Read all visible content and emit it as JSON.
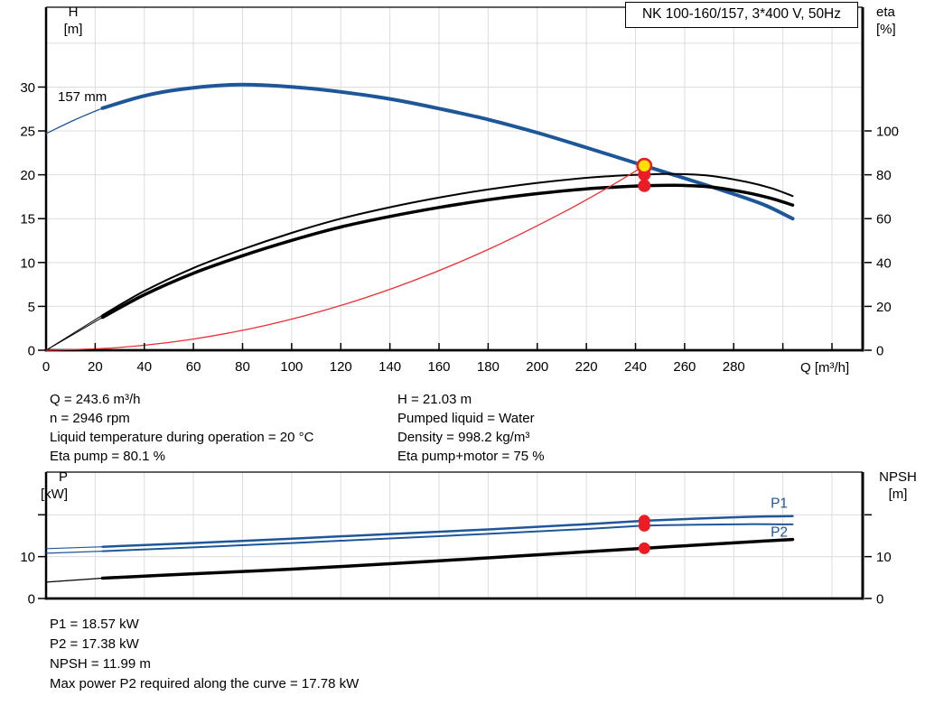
{
  "title_box": {
    "text": "NK 100-160/157, 3*400 V, 50Hz"
  },
  "colors": {
    "curve_blue": "#1e5799",
    "marker_red": "#ec1c24",
    "marker_yellow": "#ffe100",
    "system_curve_red": "#ee2e34",
    "grid": "#dcdcdc",
    "axis": "#000000"
  },
  "top_chart": {
    "y_left_title": [
      "H",
      "[m]"
    ],
    "y_right_title": [
      "eta",
      "[%]"
    ],
    "x_title": "Q [m³/h]",
    "impeller_trim_label": "157 mm"
  },
  "operating_point_info": {
    "left": [
      "Q = 243.6 m³/h",
      "n = 2946 rpm",
      "Liquid temperature during operation = 20 °C",
      "Eta pump = 80.1 %"
    ],
    "right": [
      "H = 21.03 m",
      "Pumped liquid = Water",
      "Density = 998.2 kg/m³",
      "Eta pump+motor = 75 %"
    ]
  },
  "bottom_chart": {
    "y_left_title": [
      "P",
      "[kW]"
    ],
    "y_right_title": [
      "NPSH",
      "[m]"
    ]
  },
  "footer_info": [
    "P1 = 18.57 kW",
    "P2 = 17.38 kW",
    "NPSH = 11.99 m",
    "Max power P2 required along the curve = 17.78 kW"
  ],
  "chart_data": [
    {
      "type": "line",
      "title": "NK 100-160/157, 3*400 V, 50Hz",
      "xlabel": "Q [m³/h]",
      "xlim": [
        0,
        332.5
      ],
      "x_ticks_labeled": [
        0,
        20,
        40,
        60,
        80,
        100,
        120,
        140,
        160,
        180,
        200,
        220,
        240,
        260,
        280
      ],
      "x_ticks_unlabeled": [
        300,
        320
      ],
      "x_gridlines": [
        20,
        40,
        60,
        80,
        100,
        120,
        140,
        160,
        180,
        200,
        220,
        240,
        260,
        280,
        300,
        320
      ],
      "left_axis": {
        "label": "H [m]",
        "lim": [
          0,
          39.1
        ],
        "ticks_labeled": [
          0,
          5,
          10,
          15,
          20,
          25,
          30
        ],
        "gridlines": [
          5,
          10,
          15,
          20,
          25,
          30,
          35
        ]
      },
      "right_axis": {
        "label": "eta [%]",
        "lim": [
          0,
          156.4
        ],
        "ticks_labeled": [
          0,
          20,
          40,
          60,
          80,
          100
        ],
        "gridlines": []
      },
      "series": [
        {
          "name": "head-curve-157mm",
          "axis": "left",
          "color": "#1e5799",
          "width": 4,
          "pre_width": 1.3,
          "pre": [
            [
              0,
              24.7
            ],
            [
              12,
              26.3
            ],
            [
              23,
              27.6
            ]
          ],
          "points": [
            [
              23,
              27.6
            ],
            [
              40,
              29.0
            ],
            [
              55,
              29.75
            ],
            [
              75,
              30.25
            ],
            [
              90,
              30.2
            ],
            [
              105,
              29.9
            ],
            [
              120,
              29.45
            ],
            [
              140,
              28.65
            ],
            [
              160,
              27.55
            ],
            [
              180,
              26.3
            ],
            [
              200,
              24.8
            ],
            [
              220,
              23.1
            ],
            [
              243.6,
              21.03
            ],
            [
              260,
              19.6
            ],
            [
              280,
              17.8
            ],
            [
              293,
              16.5
            ],
            [
              304,
              15.0
            ]
          ]
        },
        {
          "name": "eta-pump-curve",
          "axis": "right",
          "color": "#000000",
          "width": 2,
          "pre_width": 1,
          "pre": [
            [
              0,
              0
            ],
            [
              23,
              16
            ]
          ],
          "points": [
            [
              23,
              16
            ],
            [
              40,
              27
            ],
            [
              60,
              37.5
            ],
            [
              80,
              46
            ],
            [
              100,
              53.5
            ],
            [
              120,
              60
            ],
            [
              140,
              65.2
            ],
            [
              160,
              69.6
            ],
            [
              180,
              73.3
            ],
            [
              200,
              76.3
            ],
            [
              220,
              78.6
            ],
            [
              232,
              79.5
            ],
            [
              243.6,
              80.1
            ],
            [
              256,
              80.4
            ],
            [
              270,
              79.6
            ],
            [
              285,
              76.8
            ],
            [
              295,
              74
            ],
            [
              304,
              70.3
            ]
          ]
        },
        {
          "name": "eta-pump-motor-curve",
          "axis": "right",
          "color": "#000000",
          "width": 3.5,
          "pre_width": 1,
          "pre": [
            [
              0,
              0
            ],
            [
              23,
              15
            ]
          ],
          "points": [
            [
              23,
              15
            ],
            [
              40,
              25.3
            ],
            [
              60,
              35.1
            ],
            [
              80,
              43.1
            ],
            [
              100,
              50.1
            ],
            [
              120,
              56.2
            ],
            [
              140,
              61
            ],
            [
              160,
              65.1
            ],
            [
              180,
              68.6
            ],
            [
              200,
              71.4
            ],
            [
              220,
              73.6
            ],
            [
              232,
              74.4
            ],
            [
              243.6,
              75.0
            ],
            [
              256,
              75.2
            ],
            [
              270,
              74.5
            ],
            [
              285,
              71.9
            ],
            [
              295,
              69.3
            ],
            [
              304,
              66.2
            ]
          ]
        },
        {
          "name": "system-curve",
          "axis": "left",
          "color": "#ee2e34",
          "width": 1.3,
          "pre_width": 1,
          "points": [
            [
              0,
              0
            ],
            [
              30,
              0.32
            ],
            [
              60,
              1.28
            ],
            [
              90,
              2.87
            ],
            [
              120,
              5.1
            ],
            [
              150,
              7.97
            ],
            [
              180,
              11.48
            ],
            [
              210,
              15.63
            ],
            [
              230,
              18.74
            ],
            [
              243.6,
              21.03
            ]
          ]
        }
      ],
      "markers": [
        {
          "name": "duty-point-eta-pump",
          "q": 243.6,
          "v": 80.1,
          "axis": "right",
          "fill": "#ec1c24",
          "r": 7
        },
        {
          "name": "duty-point-eta-pump-motor",
          "q": 243.6,
          "v": 75,
          "axis": "right",
          "fill": "#ec1c24",
          "r": 7
        },
        {
          "name": "duty-point-head",
          "q": 243.6,
          "v": 21.03,
          "axis": "left",
          "fill": "#ffe100",
          "stroke": "#ec1c24",
          "stroke_width": 2.6,
          "r": 7.6
        }
      ],
      "curve_labels": []
    },
    {
      "type": "line",
      "title": "",
      "xlabel": "",
      "xlim": [
        0,
        332.5
      ],
      "x_ticks_labeled": [],
      "x_ticks_unlabeled": [],
      "x_gridlines": [
        20,
        40,
        60,
        80,
        100,
        120,
        140,
        160,
        180,
        200,
        220,
        240,
        260,
        280,
        300,
        320
      ],
      "left_axis": {
        "label": "P [kW]",
        "lim": [
          0,
          30.2
        ],
        "ticks_labeled": [
          0,
          10
        ],
        "ticks_unlabeled": [
          20
        ],
        "gridlines": [
          10,
          20
        ]
      },
      "right_axis": {
        "label": "NPSH [m]",
        "lim": [
          0,
          30.2
        ],
        "ticks_labeled": [
          0,
          10
        ],
        "ticks_unlabeled": [
          20
        ],
        "gridlines": []
      },
      "series": [
        {
          "name": "p1-power-curve",
          "axis": "left",
          "color": "#1e5799",
          "width": 2.5,
          "pre_width": 1.2,
          "pre": [
            [
              0,
              11.9
            ],
            [
              23,
              12.35
            ]
          ],
          "points": [
            [
              23,
              12.35
            ],
            [
              60,
              13.25
            ],
            [
              100,
              14.3
            ],
            [
              140,
              15.4
            ],
            [
              180,
              16.5
            ],
            [
              220,
              17.75
            ],
            [
              243.6,
              18.57
            ],
            [
              265,
              19.1
            ],
            [
              285,
              19.5
            ],
            [
              304,
              19.7
            ]
          ]
        },
        {
          "name": "p2-power-curve",
          "axis": "left",
          "color": "#1e5799",
          "width": 2,
          "pre_width": 1.2,
          "pre": [
            [
              0,
              10.8
            ],
            [
              23,
              11.3
            ]
          ],
          "points": [
            [
              23,
              11.3
            ],
            [
              60,
              12.2
            ],
            [
              100,
              13.25
            ],
            [
              140,
              14.35
            ],
            [
              180,
              15.45
            ],
            [
              220,
              16.6
            ],
            [
              243.6,
              17.38
            ],
            [
              265,
              17.62
            ],
            [
              285,
              17.76
            ],
            [
              304,
              17.7
            ]
          ]
        },
        {
          "name": "npsh-curve",
          "axis": "right",
          "color": "#000000",
          "width": 3.5,
          "pre_width": 1.2,
          "pre": [
            [
              0,
              3.9
            ],
            [
              23,
              4.85
            ]
          ],
          "points": [
            [
              23,
              4.85
            ],
            [
              60,
              5.9
            ],
            [
              100,
              7.0
            ],
            [
              140,
              8.3
            ],
            [
              180,
              9.7
            ],
            [
              220,
              11.15
            ],
            [
              243.6,
              11.99
            ],
            [
              270,
              12.95
            ],
            [
              290,
              13.65
            ],
            [
              304,
              14.1
            ]
          ]
        }
      ],
      "markers": [
        {
          "name": "duty-point-p1",
          "q": 243.6,
          "v": 18.57,
          "axis": "left",
          "fill": "#ec1c24",
          "r": 6.5
        },
        {
          "name": "duty-point-p2",
          "q": 243.6,
          "v": 17.38,
          "axis": "left",
          "fill": "#ec1c24",
          "r": 6.5
        },
        {
          "name": "duty-point-npsh",
          "q": 243.6,
          "v": 11.99,
          "axis": "right",
          "fill": "#ec1c24",
          "r": 6.5
        }
      ],
      "curve_labels": [
        {
          "name": "p1-curve-label",
          "text": "P1",
          "q": 298.5,
          "v": 22.8,
          "color": "#1e5799"
        },
        {
          "name": "p2-curve-label",
          "text": "P2",
          "q": 298.5,
          "v": 15.9,
          "color": "#1e5799"
        }
      ]
    }
  ]
}
